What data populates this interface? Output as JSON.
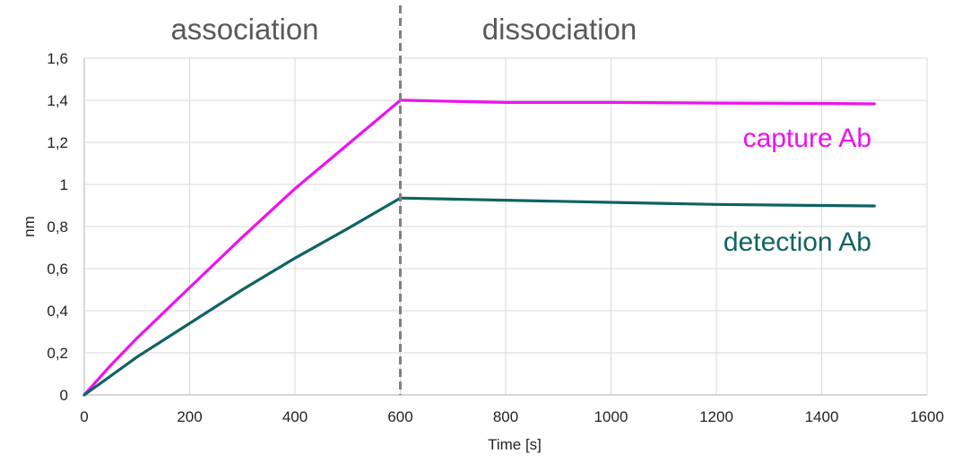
{
  "chart_data": {
    "type": "line",
    "title": "",
    "xlabel": "Time [s]",
    "ylabel": "nm",
    "xlim": [
      0,
      1600
    ],
    "ylim": [
      0,
      1.6
    ],
    "x_ticks": [
      0,
      200,
      400,
      600,
      800,
      1000,
      1200,
      1400,
      1600
    ],
    "y_ticks": [
      0,
      0.2,
      0.4,
      0.6,
      0.8,
      1,
      1.2,
      1.4,
      1.6
    ],
    "x_tick_labels": [
      "0",
      "200",
      "400",
      "600",
      "800",
      "1000",
      "1200",
      "1400",
      "1600"
    ],
    "y_tick_labels": [
      "0",
      "0,2",
      "0,4",
      "0,6",
      "0,8",
      "1",
      "1,2",
      "1,4",
      "1,6"
    ],
    "grid": "vertical and horizontal",
    "phases": [
      {
        "label": "association",
        "x_start": 0,
        "x_end": 600
      },
      {
        "label": "dissociation",
        "x_start": 600,
        "x_end": 1500
      }
    ],
    "phase_divider_x": 600,
    "series": [
      {
        "name": "capture Ab",
        "color": "#ee11ee",
        "x": [
          0,
          50,
          100,
          200,
          300,
          400,
          500,
          600,
          610,
          700,
          800,
          1000,
          1200,
          1400,
          1500
        ],
        "y": [
          0,
          0.14,
          0.27,
          0.51,
          0.75,
          0.98,
          1.19,
          1.4,
          1.4,
          1.395,
          1.39,
          1.39,
          1.387,
          1.385,
          1.383
        ]
      },
      {
        "name": "detection Ab",
        "color": "#0f6363",
        "x": [
          0,
          50,
          100,
          200,
          300,
          400,
          500,
          600,
          610,
          700,
          800,
          1000,
          1200,
          1400,
          1500
        ],
        "y": [
          0,
          0.09,
          0.18,
          0.34,
          0.5,
          0.65,
          0.79,
          0.935,
          0.935,
          0.93,
          0.925,
          0.915,
          0.905,
          0.9,
          0.898
        ]
      }
    ]
  }
}
